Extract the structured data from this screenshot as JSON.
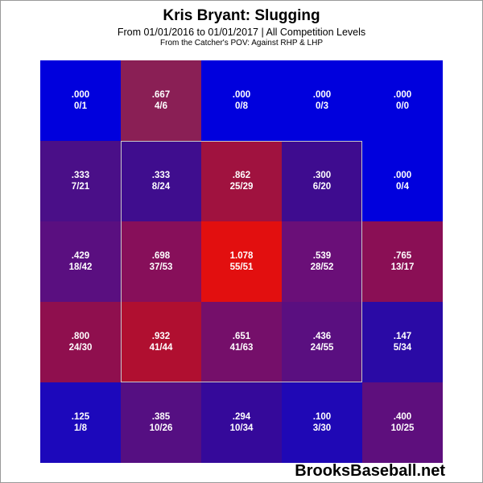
{
  "header": {
    "title": "Kris Bryant: Slugging",
    "subtitle": "From 01/01/2016 to 01/01/2017 | All Competition Levels",
    "subtitle2": "From the Catcher's POV:  Against RHP & LHP"
  },
  "watermark": "BrooksBaseball.net",
  "chart_data": {
    "type": "heatmap",
    "title": "Kris Bryant: Slugging",
    "rows": 5,
    "cols": 5,
    "values": [
      [
        0.0,
        0.667,
        0.0,
        0.0,
        0.0
      ],
      [
        0.333,
        0.333,
        0.862,
        0.3,
        0.0
      ],
      [
        0.429,
        0.698,
        1.078,
        0.539,
        0.765
      ],
      [
        0.8,
        0.932,
        0.651,
        0.436,
        0.147
      ],
      [
        0.125,
        0.385,
        0.294,
        0.1,
        0.4
      ]
    ],
    "labels": [
      [
        ".000",
        ".667",
        ".000",
        ".000",
        ".000"
      ],
      [
        ".333",
        ".333",
        ".862",
        ".300",
        ".000"
      ],
      [
        ".429",
        ".698",
        "1.078",
        ".539",
        ".765"
      ],
      [
        ".800",
        ".932",
        ".651",
        ".436",
        ".147"
      ],
      [
        ".125",
        ".385",
        ".294",
        ".100",
        ".400"
      ]
    ],
    "counts": [
      [
        "0/1",
        "4/6",
        "0/8",
        "0/3",
        "0/0"
      ],
      [
        "7/21",
        "8/24",
        "25/29",
        "6/20",
        "0/4"
      ],
      [
        "18/42",
        "37/53",
        "55/51",
        "28/52",
        "13/17"
      ],
      [
        "24/30",
        "41/44",
        "41/63",
        "24/55",
        "5/34"
      ],
      [
        "1/8",
        "10/26",
        "10/34",
        "3/30",
        "10/25"
      ]
    ],
    "colors": [
      [
        "#0000dd",
        "#8a1f55",
        "#0000dd",
        "#0000dd",
        "#0000dd"
      ],
      [
        "#4a0f88",
        "#3f0d8e",
        "#a0123f",
        "#3e0c8f",
        "#0000dd"
      ],
      [
        "#5a0f80",
        "#870f5a",
        "#e20f0f",
        "#6a0f78",
        "#8a0f55"
      ],
      [
        "#8f0f4e",
        "#b00f30",
        "#750f6a",
        "#5a0f80",
        "#2a0aa5"
      ],
      [
        "#1c08bb",
        "#550f82",
        "#35099a",
        "#1f08b5",
        "#5e0f7d"
      ]
    ],
    "strike_zone": {
      "row_start": 1,
      "row_end": 3,
      "col_start": 1,
      "col_end": 3
    }
  }
}
